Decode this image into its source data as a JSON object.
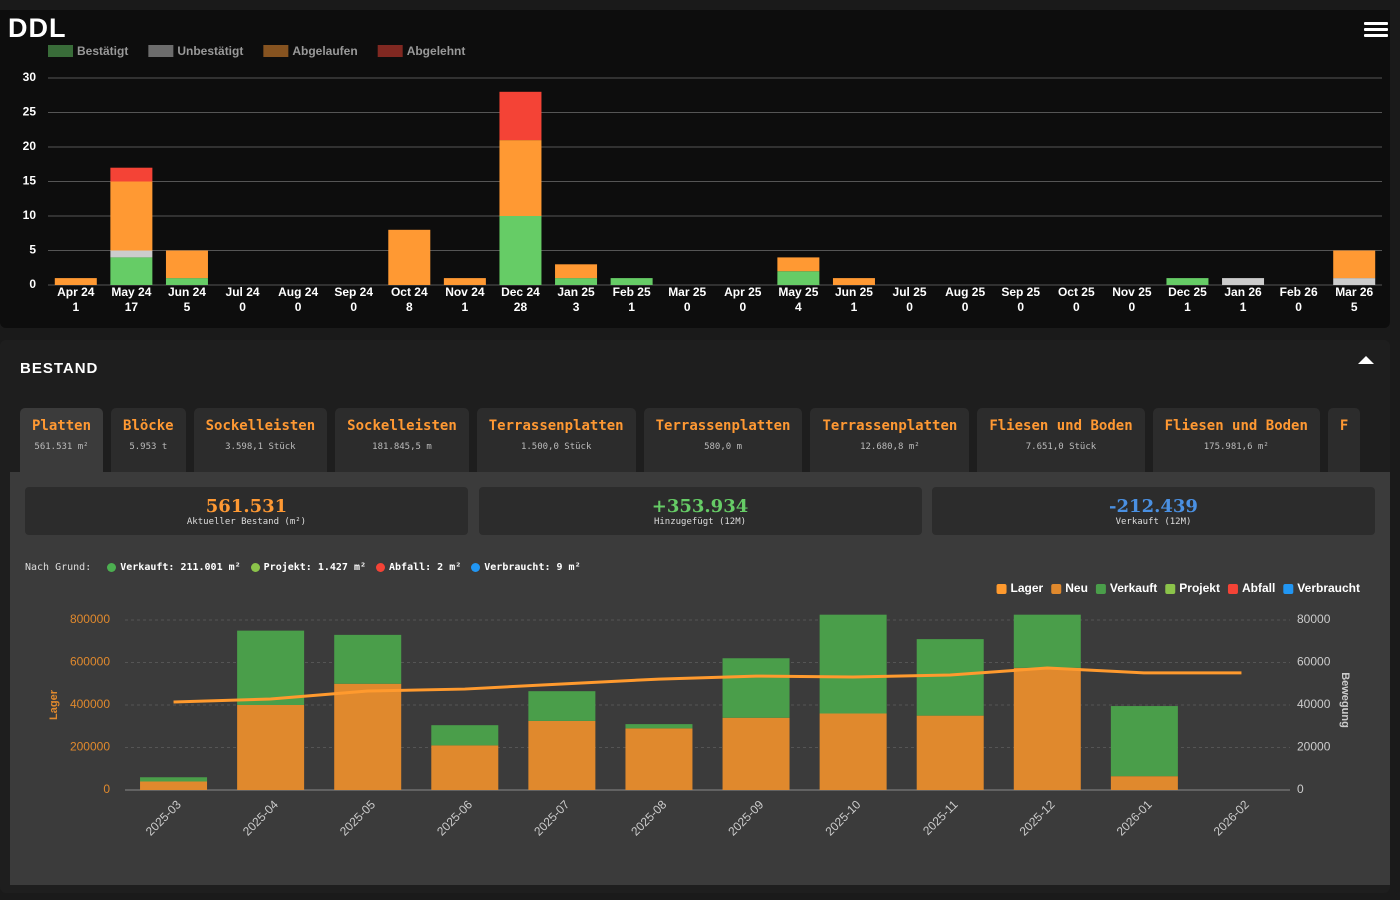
{
  "header": {
    "title": "DDL"
  },
  "chart_data": [
    {
      "type": "stacked_bar",
      "categories": [
        "Apr 24",
        "May 24",
        "Jun 24",
        "Jul 24",
        "Aug 24",
        "Sep 24",
        "Oct 24",
        "Nov 24",
        "Dec 24",
        "Jan 25",
        "Feb 25",
        "Mar 25",
        "Apr 25",
        "May 25",
        "Jun 25",
        "Jul 25",
        "Aug 25",
        "Sep 25",
        "Oct 25",
        "Nov 25",
        "Dec 25",
        "Jan 26",
        "Feb 26",
        "Mar 26"
      ],
      "totals": [
        1,
        17,
        5,
        0,
        0,
        0,
        8,
        1,
        28,
        3,
        1,
        0,
        0,
        4,
        1,
        0,
        0,
        0,
        0,
        0,
        1,
        1,
        0,
        5
      ],
      "series": [
        {
          "name": "Bestätigt",
          "color": "#66cc66",
          "values": [
            0,
            4,
            1,
            0,
            0,
            0,
            0,
            0,
            10,
            1,
            1,
            0,
            0,
            2,
            0,
            0,
            0,
            0,
            0,
            0,
            1,
            0,
            0,
            0
          ]
        },
        {
          "name": "Unbestätigt",
          "color": "#cccccc",
          "values": [
            0,
            1,
            0,
            0,
            0,
            0,
            0,
            0,
            0,
            0,
            0,
            0,
            0,
            0,
            0,
            0,
            0,
            0,
            0,
            0,
            0,
            1,
            0,
            1
          ]
        },
        {
          "name": "Abgelaufen",
          "color": "#ff9933",
          "values": [
            1,
            10,
            4,
            0,
            0,
            0,
            8,
            1,
            11,
            2,
            0,
            0,
            0,
            2,
            1,
            0,
            0,
            0,
            0,
            0,
            0,
            0,
            0,
            4
          ]
        },
        {
          "name": "Abgelehnt",
          "color": "#f44336",
          "values": [
            0,
            2,
            0,
            0,
            0,
            0,
            0,
            0,
            7,
            0,
            0,
            0,
            0,
            0,
            0,
            0,
            0,
            0,
            0,
            0,
            0,
            0,
            0,
            0
          ]
        }
      ],
      "ylim": [
        0,
        30
      ],
      "yticks": [
        0,
        5,
        10,
        15,
        20,
        25,
        30
      ],
      "grid": true,
      "legend": "top-left"
    },
    {
      "type": "combo",
      "categories": [
        "2025-03",
        "2025-04",
        "2025-05",
        "2025-06",
        "2025-07",
        "2025-08",
        "2025-09",
        "2025-10",
        "2025-11",
        "2025-12",
        "2026-01",
        "2026-02"
      ],
      "ylabel": "Lager",
      "y2label": "Bewegung",
      "series": [
        {
          "name": "Lager",
          "type": "line",
          "axis": "y",
          "color": "#ff9a2e",
          "values": [
            414000,
            428000,
            466000,
            475000,
            499000,
            522000,
            536000,
            532000,
            541000,
            574000,
            551000,
            551000
          ]
        },
        {
          "name": "Neu",
          "type": "bar",
          "axis": "y2",
          "color": "#e0892d",
          "values": [
            4000,
            40000,
            50000,
            21000,
            32500,
            29000,
            34000,
            36000,
            35000,
            57500,
            6500,
            0
          ]
        },
        {
          "name": "Verkauft",
          "type": "bar",
          "axis": "y2",
          "color": "#4a9e4a",
          "values": [
            2000,
            35000,
            23000,
            9500,
            14000,
            2000,
            28000,
            46500,
            36000,
            25000,
            33000,
            0
          ]
        },
        {
          "name": "Projekt",
          "type": "bar",
          "axis": "y2",
          "color": "#8bc34a",
          "values": [
            0,
            0,
            0,
            0,
            0,
            0,
            0,
            0,
            0,
            0,
            0,
            0
          ]
        },
        {
          "name": "Abfall",
          "type": "bar",
          "axis": "y2",
          "color": "#f44336",
          "values": [
            0,
            0,
            0,
            0,
            0,
            0,
            0,
            0,
            0,
            0,
            0,
            0
          ]
        },
        {
          "name": "Verbraucht",
          "type": "bar",
          "axis": "y2",
          "color": "#2196f3",
          "values": [
            0,
            0,
            0,
            0,
            0,
            0,
            0,
            0,
            0,
            0,
            0,
            0
          ]
        }
      ],
      "ylim": [
        0,
        800000
      ],
      "yticks": [
        0,
        200000,
        400000,
        600000,
        800000
      ],
      "y2lim": [
        0,
        80000
      ],
      "y2ticks": [
        0,
        20000,
        40000,
        60000,
        80000
      ],
      "grid": true,
      "legend": "top-right"
    }
  ],
  "section": {
    "title": "BESTAND",
    "tabs": [
      {
        "name": "Platten",
        "amount": "561.531 m²"
      },
      {
        "name": "Blöcke",
        "amount": "5.953 t"
      },
      {
        "name": "Sockelleisten",
        "amount": "3.598,1 Stück"
      },
      {
        "name": "Sockelleisten",
        "amount": "181.845,5 m"
      },
      {
        "name": "Terrassenplatten",
        "amount": "1.500,0 Stück"
      },
      {
        "name": "Terrassenplatten",
        "amount": "580,0 m"
      },
      {
        "name": "Terrassenplatten",
        "amount": "12.680,8 m²"
      },
      {
        "name": "Fliesen und Boden",
        "amount": "7.651,0 Stück"
      },
      {
        "name": "Fliesen und Boden",
        "amount": "175.981,6 m²"
      },
      {
        "name": "F"
      }
    ],
    "stats": [
      {
        "value": "561.531",
        "label": "Aktueller Bestand (m²)",
        "color": "#ff9933"
      },
      {
        "value": "+353.934",
        "label": "Hinzugefügt (12M)",
        "color": "#66cc66"
      },
      {
        "value": "-212.439",
        "label": "Verkauft (12M)",
        "color": "#4a90e2"
      }
    ],
    "breakdown": {
      "label": "Nach Grund:",
      "items": [
        {
          "label": "Verkauft: 211.001 m²",
          "color": "#4caf50"
        },
        {
          "label": "Projekt: 1.427 m²",
          "color": "#8bc34a"
        },
        {
          "label": "Abfall: 2 m²",
          "color": "#f44336"
        },
        {
          "label": "Verbraucht: 9 m²",
          "color": "#2196f3"
        }
      ]
    }
  }
}
